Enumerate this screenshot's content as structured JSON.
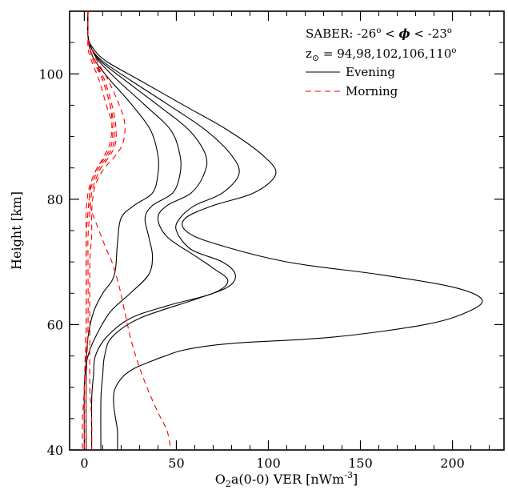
{
  "chart_data": {
    "type": "line",
    "xlabel": {
      "main": "O",
      "sub1": "2",
      "rest": "a(0-0) VER [nWm",
      "sup": "-3",
      "end": "]"
    },
    "ylabel": "Height [km]",
    "xlim": [
      -8,
      228
    ],
    "ylim": [
      40,
      110
    ],
    "x_ticks": [
      0,
      50,
      100,
      150,
      200
    ],
    "y_ticks": [
      40,
      60,
      80,
      100
    ],
    "grid": false,
    "legend": {
      "placement": "top-right",
      "line1": {
        "prefix": "SABER:  -26",
        "deg1": "o",
        "mid": "  <  ",
        "phi": "ϕ",
        "mid2": "  <  -23",
        "deg2": "o"
      },
      "line2": {
        "z": "z",
        "sun": "⊙",
        "eq": "  =  94,98,102,106,110",
        "deg": "o"
      },
      "entries": [
        {
          "label": "Evening",
          "color": "#000000",
          "dash": "solid"
        },
        {
          "label": "Morning",
          "color": "#ff0000",
          "dash": "dashed"
        }
      ]
    },
    "series": [
      {
        "group": "Evening",
        "sza": 94,
        "color": "#000000",
        "dash": "solid",
        "points": [
          [
            2,
            110
          ],
          [
            2,
            106
          ],
          [
            3,
            104
          ],
          [
            6,
            102
          ],
          [
            14,
            99
          ],
          [
            26,
            95
          ],
          [
            36,
            91
          ],
          [
            40,
            87
          ],
          [
            40,
            84
          ],
          [
            37,
            81
          ],
          [
            27,
            79
          ],
          [
            20,
            77
          ],
          [
            18,
            73
          ],
          [
            17,
            69
          ],
          [
            15,
            67
          ],
          [
            10,
            65
          ],
          [
            5,
            62
          ],
          [
            2,
            58
          ],
          [
            1,
            54
          ],
          [
            0,
            50
          ],
          [
            0,
            40
          ]
        ]
      },
      {
        "group": "Evening",
        "sza": 98,
        "color": "#000000",
        "dash": "solid",
        "points": [
          [
            2,
            110
          ],
          [
            2,
            106
          ],
          [
            4,
            104
          ],
          [
            8,
            102
          ],
          [
            18,
            99
          ],
          [
            33,
            95
          ],
          [
            47,
            91
          ],
          [
            52,
            87
          ],
          [
            52,
            84
          ],
          [
            48,
            81
          ],
          [
            37,
            79
          ],
          [
            33,
            77
          ],
          [
            35,
            74
          ],
          [
            37,
            71
          ],
          [
            35,
            68
          ],
          [
            25,
            65
          ],
          [
            14,
            62
          ],
          [
            6,
            58
          ],
          [
            2,
            55
          ],
          [
            1,
            52
          ],
          [
            1,
            40
          ]
        ]
      },
      {
        "group": "Evening",
        "sza": 102,
        "color": "#000000",
        "dash": "solid",
        "points": [
          [
            2,
            110
          ],
          [
            2,
            106
          ],
          [
            4,
            104
          ],
          [
            9,
            102
          ],
          [
            22,
            99
          ],
          [
            40,
            95
          ],
          [
            57,
            91
          ],
          [
            66,
            87
          ],
          [
            65,
            84
          ],
          [
            58,
            81
          ],
          [
            45,
            79
          ],
          [
            40,
            77
          ],
          [
            45,
            74
          ],
          [
            60,
            71
          ],
          [
            70,
            69
          ],
          [
            78,
            67
          ],
          [
            70,
            65
          ],
          [
            45,
            63
          ],
          [
            25,
            61
          ],
          [
            12,
            58
          ],
          [
            6,
            55
          ],
          [
            5,
            52
          ],
          [
            4,
            48
          ],
          [
            4,
            40
          ]
        ]
      },
      {
        "group": "Evening",
        "sza": 106,
        "color": "#000000",
        "dash": "solid",
        "points": [
          [
            2,
            110
          ],
          [
            2,
            106
          ],
          [
            4,
            104
          ],
          [
            10,
            102
          ],
          [
            25,
            99
          ],
          [
            46,
            95
          ],
          [
            66,
            91
          ],
          [
            80,
            87
          ],
          [
            84,
            84
          ],
          [
            75,
            81
          ],
          [
            60,
            79
          ],
          [
            52,
            77
          ],
          [
            50,
            75
          ],
          [
            58,
            72
          ],
          [
            75,
            70
          ],
          [
            82,
            68
          ],
          [
            78,
            66
          ],
          [
            60,
            64
          ],
          [
            30,
            61
          ],
          [
            15,
            58
          ],
          [
            11,
            55
          ],
          [
            10,
            52
          ],
          [
            9,
            48
          ],
          [
            9,
            40
          ]
        ]
      },
      {
        "group": "Evening",
        "sza": 110,
        "color": "#000000",
        "dash": "solid",
        "points": [
          [
            2,
            110
          ],
          [
            2,
            106
          ],
          [
            5,
            104
          ],
          [
            12,
            102
          ],
          [
            30,
            99
          ],
          [
            54,
            95
          ],
          [
            78,
            91
          ],
          [
            97,
            87
          ],
          [
            104,
            84
          ],
          [
            92,
            81
          ],
          [
            70,
            79
          ],
          [
            55,
            77
          ],
          [
            55,
            75
          ],
          [
            70,
            73
          ],
          [
            110,
            70
          ],
          [
            160,
            68
          ],
          [
            200,
            66
          ],
          [
            216,
            64
          ],
          [
            208,
            62
          ],
          [
            185,
            60
          ],
          [
            135,
            58
          ],
          [
            80,
            57
          ],
          [
            55,
            56
          ],
          [
            44,
            55
          ],
          [
            35,
            54
          ],
          [
            27,
            53
          ],
          [
            22,
            52
          ],
          [
            19,
            51
          ],
          [
            17,
            50
          ],
          [
            16,
            49
          ],
          [
            16,
            47
          ],
          [
            17,
            45
          ],
          [
            18,
            43
          ],
          [
            18,
            40
          ]
        ]
      },
      {
        "group": "Morning",
        "sza": 94,
        "color": "#ff0000",
        "dash": "dashed",
        "points": [
          [
            2,
            110
          ],
          [
            2,
            106
          ],
          [
            2,
            104
          ],
          [
            4,
            102
          ],
          [
            8,
            99
          ],
          [
            12,
            95
          ],
          [
            15,
            92
          ],
          [
            15,
            89
          ],
          [
            12,
            87
          ],
          [
            7,
            85
          ],
          [
            4,
            83
          ],
          [
            2,
            81
          ],
          [
            1,
            78
          ],
          [
            1,
            74
          ],
          [
            1,
            70
          ],
          [
            1,
            60
          ],
          [
            0,
            50
          ],
          [
            -1,
            45
          ],
          [
            -1,
            40
          ]
        ]
      },
      {
        "group": "Morning",
        "sza": 98,
        "color": "#ff0000",
        "dash": "dashed",
        "points": [
          [
            2,
            110
          ],
          [
            2,
            106
          ],
          [
            3,
            104
          ],
          [
            5,
            102
          ],
          [
            10,
            99
          ],
          [
            14,
            95
          ],
          [
            16,
            92
          ],
          [
            16,
            89
          ],
          [
            13,
            87
          ],
          [
            8,
            85
          ],
          [
            5,
            83
          ],
          [
            3,
            81
          ],
          [
            2,
            78
          ],
          [
            1,
            74
          ],
          [
            1,
            70
          ],
          [
            1,
            60
          ],
          [
            0,
            50
          ],
          [
            0,
            40
          ]
        ]
      },
      {
        "group": "Morning",
        "sza": 102,
        "color": "#ff0000",
        "dash": "dashed",
        "points": [
          [
            2,
            110
          ],
          [
            2,
            106
          ],
          [
            3,
            104
          ],
          [
            6,
            102
          ],
          [
            11,
            99
          ],
          [
            15,
            95
          ],
          [
            17,
            92
          ],
          [
            17,
            89
          ],
          [
            14,
            87
          ],
          [
            9,
            85
          ],
          [
            6,
            83
          ],
          [
            4,
            81
          ],
          [
            3,
            78
          ],
          [
            2,
            74
          ],
          [
            2,
            70
          ],
          [
            2,
            60
          ],
          [
            1,
            50
          ],
          [
            1,
            40
          ]
        ]
      },
      {
        "group": "Morning",
        "sza": 106,
        "color": "#ff0000",
        "dash": "dashed",
        "points": [
          [
            2,
            110
          ],
          [
            2,
            106
          ],
          [
            4,
            104
          ],
          [
            7,
            102
          ],
          [
            13,
            99
          ],
          [
            19,
            95
          ],
          [
            22,
            92
          ],
          [
            21,
            89
          ],
          [
            17,
            87
          ],
          [
            11,
            85
          ],
          [
            7,
            83
          ],
          [
            5,
            81
          ],
          [
            4,
            78
          ],
          [
            4,
            74
          ],
          [
            3,
            70
          ],
          [
            3,
            60
          ],
          [
            3,
            50
          ],
          [
            4,
            45
          ],
          [
            4,
            40
          ]
        ]
      },
      {
        "group": "Morning",
        "sza": 110,
        "color": "#ff0000",
        "dash": "dashed",
        "points": [
          [
            2,
            110
          ],
          [
            2,
            106
          ],
          [
            3,
            104
          ],
          [
            6,
            102
          ],
          [
            10,
            99
          ],
          [
            14,
            95
          ],
          [
            15,
            92
          ],
          [
            14,
            89
          ],
          [
            11,
            87
          ],
          [
            7,
            85
          ],
          [
            4,
            83
          ],
          [
            3,
            81
          ],
          [
            3,
            79
          ],
          [
            8,
            75
          ],
          [
            12,
            72
          ],
          [
            15,
            70
          ],
          [
            19,
            66
          ],
          [
            22,
            62
          ],
          [
            25,
            58
          ],
          [
            29,
            54
          ],
          [
            34,
            50
          ],
          [
            40,
            46
          ],
          [
            45,
            43
          ],
          [
            47,
            40
          ]
        ]
      }
    ]
  }
}
